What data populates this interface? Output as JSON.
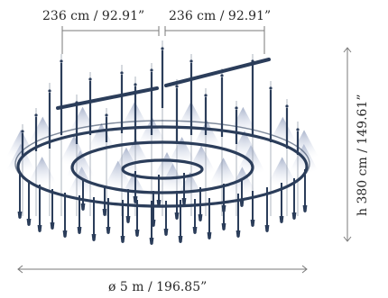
{
  "dimensions": {
    "width_left": "236 cm / 92.91”",
    "width_right": "236 cm / 92.91”",
    "height": "h 380 cm / 149.61”",
    "diameter": "ø 5 m / 196.85”"
  },
  "colors": {
    "metal": "#2b3d5a",
    "glow": "#c8d0e2",
    "dimension_line": "#7a7a7a",
    "text": "#2a2a2a"
  }
}
